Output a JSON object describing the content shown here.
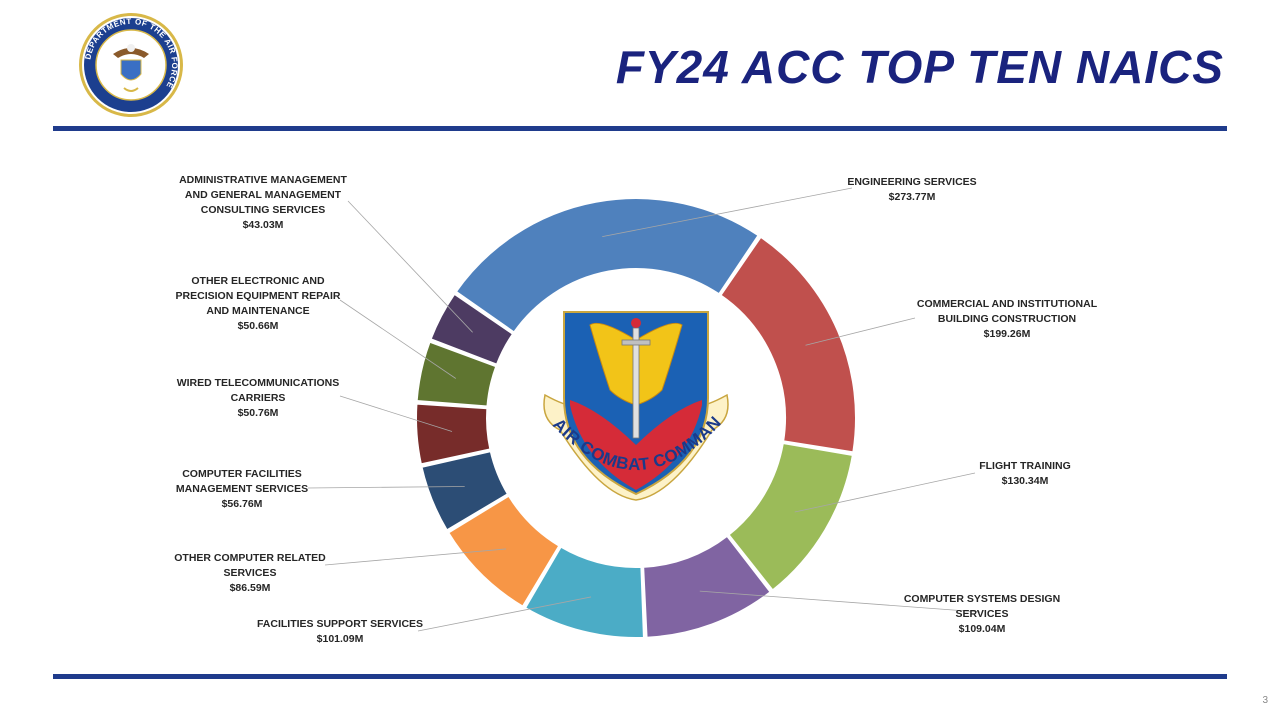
{
  "title": "FY24 ACC TOP TEN NAICS",
  "page_number": "3",
  "seal": {
    "text": "DEPARTMENT OF THE AIR FORCE",
    "icon": "department-of-the-air-force-seal"
  },
  "emblem": {
    "text": "AIR COMBAT COMMAND",
    "icon": "air-combat-command-shield"
  },
  "colors": {
    "title": "#1a237e",
    "rule": "#1f3b8c"
  },
  "chart_data": {
    "type": "pie",
    "variant": "donut",
    "title": "",
    "slices": [
      {
        "label_lines": [
          "ENGINEERING SERVICES"
        ],
        "value_label": "$273.77M",
        "value": 273.77,
        "color": "#4f81bd"
      },
      {
        "label_lines": [
          "COMMERCIAL AND INSTITUTIONAL",
          "BUILDING CONSTRUCTION"
        ],
        "value_label": "$199.26M",
        "value": 199.26,
        "color": "#c0504d"
      },
      {
        "label_lines": [
          "FLIGHT TRAINING"
        ],
        "value_label": "$130.34M",
        "value": 130.34,
        "color": "#9bbb59"
      },
      {
        "label_lines": [
          "COMPUTER SYSTEMS DESIGN",
          "SERVICES"
        ],
        "value_label": "$109.04M",
        "value": 109.04,
        "color": "#8064a2"
      },
      {
        "label_lines": [
          "FACILITIES SUPPORT SERVICES"
        ],
        "value_label": "$101.09M",
        "value": 101.09,
        "color": "#4bacc6"
      },
      {
        "label_lines": [
          "OTHER COMPUTER RELATED",
          "SERVICES"
        ],
        "value_label": "$86.59M",
        "value": 86.59,
        "color": "#f79646"
      },
      {
        "label_lines": [
          "COMPUTER FACILITIES",
          "MANAGEMENT SERVICES"
        ],
        "value_label": "$56.76M",
        "value": 56.76,
        "color": "#2c4d75"
      },
      {
        "label_lines": [
          "WIRED TELECOMMUNICATIONS",
          "CARRIERS"
        ],
        "value_label": "$50.76M",
        "value": 50.76,
        "color": "#772c2a"
      },
      {
        "label_lines": [
          "OTHER ELECTRONIC AND",
          "PRECISION EQUIPMENT REPAIR",
          "AND MAINTENANCE"
        ],
        "value_label": "$50.66M",
        "value": 50.66,
        "color": "#5f7530"
      },
      {
        "label_lines": [
          "ADMINISTRATIVE MANAGEMENT",
          "AND GENERAL MANAGEMENT",
          "CONSULTING SERVICES"
        ],
        "value_label": "$43.03M",
        "value": 43.03,
        "color": "#4d3b62"
      }
    ],
    "legend": "none"
  }
}
